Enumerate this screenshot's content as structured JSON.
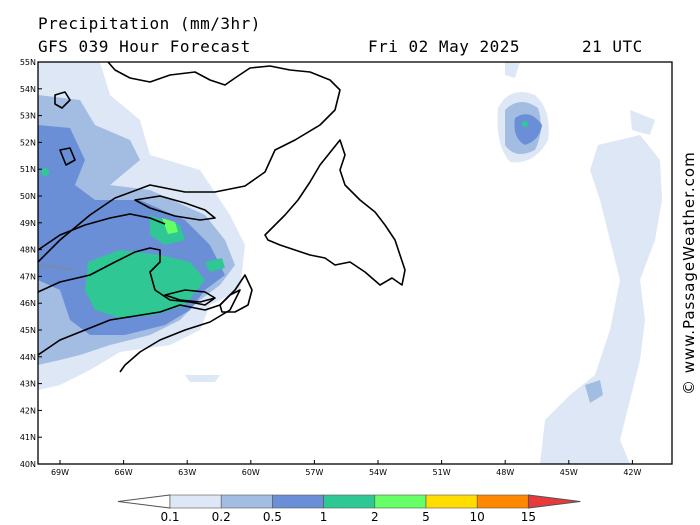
{
  "header": {
    "title": "Precipitation (mm/3hr)",
    "subtitle": "GFS 039 Hour Forecast",
    "date": "Fri 02 May 2025",
    "time": "21 UTC"
  },
  "credit": "© www.PassageWeather.com",
  "map": {
    "lat_labels": [
      "55N",
      "54N",
      "53N",
      "52N",
      "51N",
      "50N",
      "49N",
      "48N",
      "47N",
      "46N",
      "45N",
      "44N",
      "43N",
      "42N",
      "41N",
      "40N"
    ],
    "lon_labels": [
      "69W",
      "66W",
      "63W",
      "60W",
      "57W",
      "54W",
      "51W",
      "48W",
      "45W",
      "42W"
    ]
  },
  "legend": {
    "labels": [
      "0.1",
      "0.2",
      "0.5",
      "1",
      "2",
      "5",
      "10",
      "15"
    ],
    "colors": [
      "#ffffff",
      "#dde7f5",
      "#a3bde2",
      "#6a8fd6",
      "#2fc895",
      "#66ff66",
      "#ffdd00",
      "#ff8800",
      "#e83a3a"
    ]
  }
}
